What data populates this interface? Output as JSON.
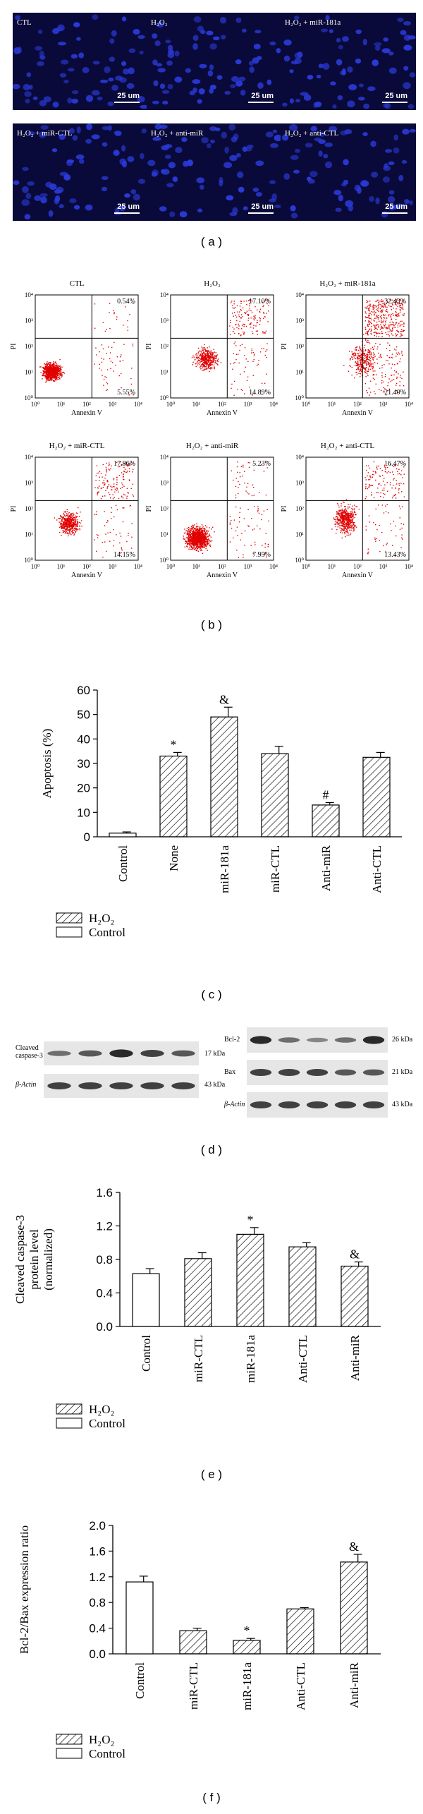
{
  "panel_labels": {
    "a": "( a )",
    "b": "( b )",
    "c": "( c )",
    "d": "( d )",
    "e": "( e )",
    "f": "( f )"
  },
  "microscopy": {
    "scale_bar": "25 um",
    "panels": [
      "CTL",
      "H₂O₂",
      "H₂O₂ + miR-181a",
      "H₂O₂ + miR-CTL",
      "H₂O₂ + anti-miR",
      "H₂O₂ + anti-CTL"
    ],
    "nuclei_color": "#2a3ad8",
    "background_color": "#0a0a3a"
  },
  "flow": {
    "xlabel": "Annexin V",
    "ylabel": "PI",
    "tick_labels": [
      "10⁰",
      "10¹",
      "10²",
      "10³",
      "10⁴"
    ],
    "point_color": "#e00000",
    "panels": [
      {
        "title": "CTL",
        "upper_right": "0.54%",
        "lower_right": "5.55%"
      },
      {
        "title": "H₂O₂",
        "upper_right": "17.10%",
        "lower_right": "14.89%"
      },
      {
        "title": "H₂O₂ + miR-181a",
        "upper_right": "32.43%",
        "lower_right": "21.40%"
      },
      {
        "title": "H₂O₂ + miR-CTL",
        "upper_right": "17.86%",
        "lower_right": "14.15%"
      },
      {
        "title": "H₂O₂ + anti-miR",
        "upper_right": "5.23%",
        "lower_right": "7.95%"
      },
      {
        "title": "H₂O₂ + anti-CTL",
        "upper_right": "16.47%",
        "lower_right": "13.43%"
      }
    ]
  },
  "western": {
    "left": {
      "rows": [
        {
          "label": "Cleaved caspase-3",
          "kda": "17 kDa"
        },
        {
          "label": "β-Actin",
          "kda": "43 kDa"
        }
      ]
    },
    "right": {
      "rows": [
        {
          "label": "Bcl-2",
          "kda": "26 kDa"
        },
        {
          "label": "Bax",
          "kda": "21 kDa"
        },
        {
          "label": "β-Actin",
          "kda": "43 kDa"
        }
      ]
    }
  },
  "legend": {
    "h2o2": "H₂O₂",
    "control": "Control"
  },
  "chart_data": [
    {
      "type": "bar",
      "panel": "c",
      "ylabel": "Apoptosis (%)",
      "ylim": [
        0,
        60
      ],
      "yticks": [
        "0",
        "10",
        "20",
        "30",
        "40",
        "50",
        "60"
      ],
      "categories": [
        "Control",
        "None",
        "miR-181a",
        "miR-CTL",
        "Anti-miR",
        "Anti-CTL"
      ],
      "values": [
        1.5,
        33,
        49,
        34,
        13,
        32.5
      ],
      "errors": [
        0.5,
        1.5,
        4,
        3,
        1,
        2
      ],
      "hatched": [
        false,
        true,
        true,
        true,
        true,
        true
      ],
      "annotations": [
        "",
        "*",
        "&",
        "",
        "#",
        ""
      ],
      "legend": [
        "H₂O₂",
        "Control"
      ]
    },
    {
      "type": "bar",
      "panel": "e",
      "ylabel": "Cleaved caspase-3 protein level (normalized)",
      "ylim": [
        0,
        1.6
      ],
      "yticks": [
        "0.0",
        "0.4",
        "0.8",
        "1.2",
        "1.6"
      ],
      "categories": [
        "Control",
        "miR-CTL",
        "miR-181a",
        "Anti-CTL",
        "Anti-miR"
      ],
      "values": [
        0.63,
        0.81,
        1.1,
        0.95,
        0.72
      ],
      "errors": [
        0.06,
        0.07,
        0.08,
        0.05,
        0.05
      ],
      "hatched": [
        false,
        true,
        true,
        true,
        true
      ],
      "annotations": [
        "",
        "",
        "*",
        "",
        "&"
      ],
      "legend": [
        "H₂O₂",
        "Control"
      ]
    },
    {
      "type": "bar",
      "panel": "f",
      "ylabel": "Bcl-2/Bax expression ratio",
      "ylim": [
        0,
        2.0
      ],
      "yticks": [
        "0.0",
        "0.4",
        "0.8",
        "1.2",
        "1.6",
        "2.0"
      ],
      "categories": [
        "Control",
        "miR-CTL",
        "miR-181a",
        "Anti-CTL",
        "Anti-miR"
      ],
      "values": [
        1.12,
        0.36,
        0.21,
        0.7,
        1.43
      ],
      "errors": [
        0.09,
        0.04,
        0.03,
        0.02,
        0.12
      ],
      "hatched": [
        false,
        true,
        true,
        true,
        true
      ],
      "annotations": [
        "",
        "",
        "*",
        "",
        "&"
      ],
      "legend": [
        "H₂O₂",
        "Control"
      ]
    }
  ]
}
